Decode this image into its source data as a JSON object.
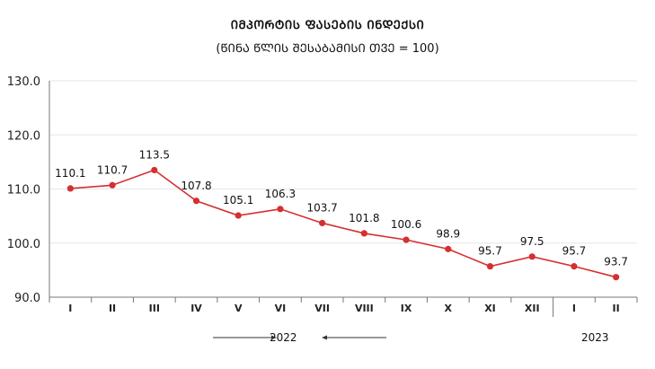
{
  "chart_data": {
    "type": "line",
    "title": "ᲘᲛᲞᲝᲠᲢᲘᲡ ᲤᲐᲡᲔᲑᲘᲡ ᲘᲜᲓᲔᲥᲡᲘ",
    "subtitle": "(ᲬᲘᲜᲐ ᲬᲚᲘᲡ ᲨᲔᲡᲐᲑᲐᲛᲘᲡᲘ ᲗᲕᲔ = 100)",
    "xlabel": "",
    "ylabel": "",
    "categories": [
      "I",
      "II",
      "III",
      "IV",
      "V",
      "VI",
      "VII",
      "VIII",
      "IX",
      "X",
      "XI",
      "XII",
      "I",
      "II"
    ],
    "series": [
      {
        "values": [
          110.1,
          110.7,
          113.5,
          107.8,
          105.1,
          106.3,
          103.7,
          101.8,
          100.6,
          98.9,
          95.7,
          97.5,
          95.7,
          93.7
        ]
      }
    ],
    "ylim": [
      90,
      130
    ],
    "yticks": [
      "90.0",
      "100.0",
      "110.0",
      "120.0",
      "130.0"
    ],
    "grid": true,
    "groups": [
      {
        "label": "2022",
        "start": 0,
        "end": 11
      },
      {
        "label": "2023",
        "start": 12,
        "end": 13
      }
    ],
    "colors": {
      "line": "#d62f2f",
      "grid": "#e6e6e6",
      "axis": "#777777"
    }
  }
}
